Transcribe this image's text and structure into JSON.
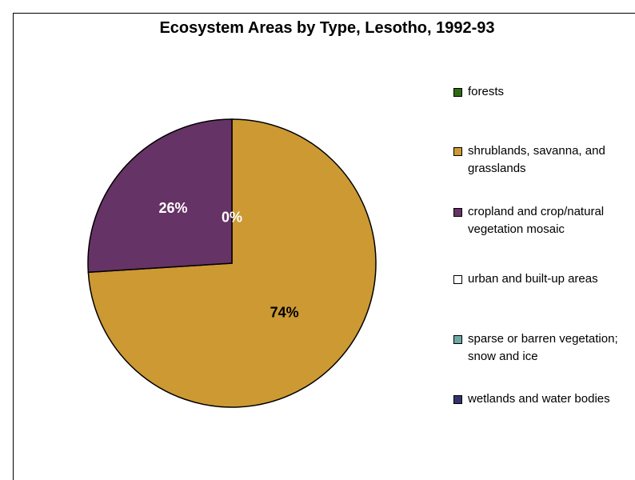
{
  "chart_data": {
    "type": "pie",
    "title": "Ecosystem Areas by Type, Lesotho, 1992-93",
    "categories": [
      "forests",
      "shrublands, savanna, and grasslands",
      "cropland and crop/natural vegetation mosaic",
      "urban and built-up areas",
      "sparse or barren vegetation; snow and ice",
      "wetlands and water bodies"
    ],
    "values": [
      0,
      74,
      26,
      0,
      0,
      0
    ],
    "data_labels": [
      "0%",
      "74%",
      "26%",
      "",
      "",
      ""
    ],
    "colors": [
      "#2e6b12",
      "#cc9933",
      "#663366",
      "#ffffff",
      "#6fa9a5",
      "#33336b"
    ],
    "legend_position": "right",
    "start_angle_degrees": 0,
    "direction": "clockwise"
  }
}
